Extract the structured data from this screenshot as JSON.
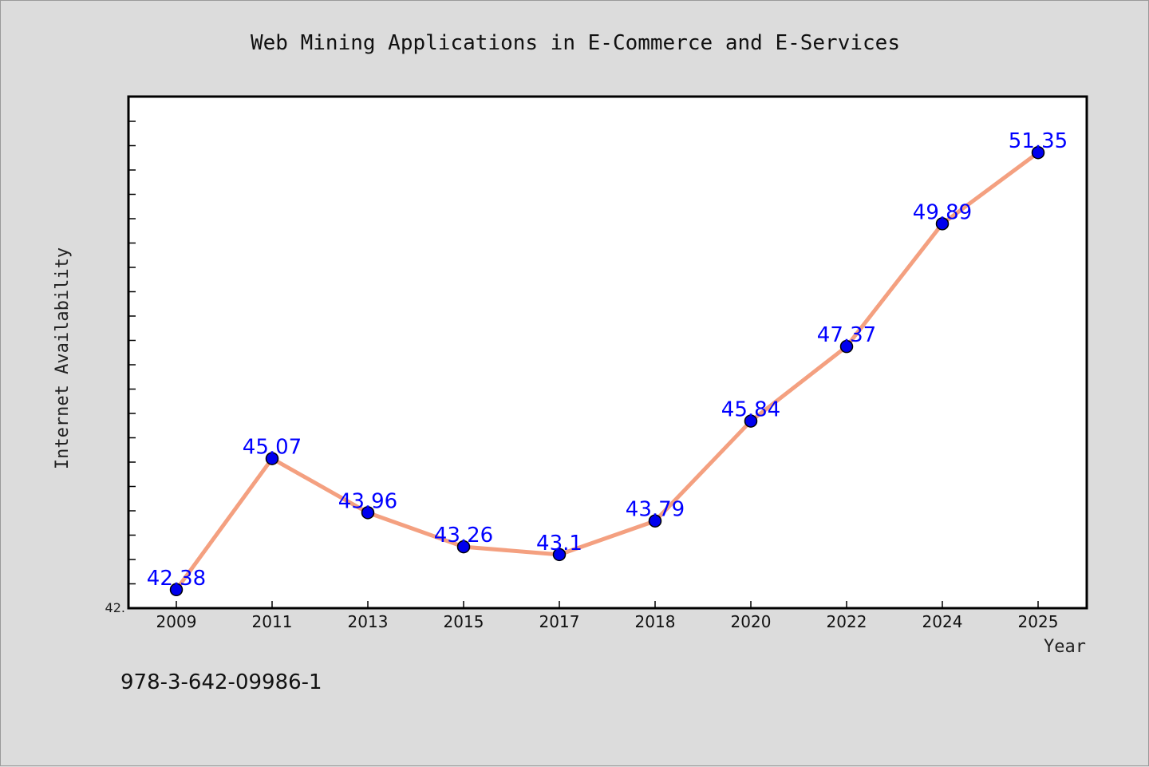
{
  "chart_data": {
    "type": "line",
    "title": "Web Mining Applications in E-Commerce and E-Services",
    "xlabel": "Year",
    "ylabel": "Internet Availability",
    "categories": [
      "2009",
      "2011",
      "2013",
      "2015",
      "2017",
      "2018",
      "2020",
      "2022",
      "2024",
      "2025"
    ],
    "series": [
      {
        "values": [
          42.38,
          45.07,
          43.96,
          43.26,
          43.1,
          43.79,
          45.84,
          47.37,
          49.89,
          51.35
        ]
      }
    ],
    "value_labels": [
      "42.38",
      "45.07",
      "43.96",
      "43.26",
      "43.1",
      "43.79",
      "45.84",
      "47.37",
      "49.89",
      "51.35"
    ],
    "y_tick_label": "42.",
    "ylim": [
      42.0,
      52.5
    ],
    "grid": false,
    "legend": "none",
    "colors": {
      "line": "#f4a080",
      "marker": "#0000ee",
      "label": "#0000ff",
      "plot_background": "#ffffff",
      "figure_background": "#dcdcdc"
    }
  },
  "footer": {
    "isbn": "978-3-642-09986-1"
  }
}
